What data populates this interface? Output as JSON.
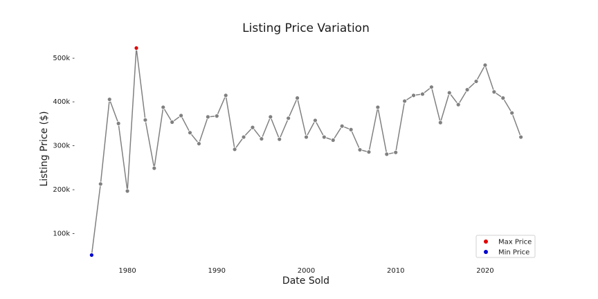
{
  "chart_data": {
    "type": "line",
    "title": "Listing Price Variation",
    "xlabel": "Date Sold",
    "ylabel": "Listing Price ($)",
    "xlim": [
      1974.5,
      2025.5
    ],
    "ylim": [
      35000,
      540000
    ],
    "x_ticks": [
      1980,
      1990,
      2000,
      2010,
      2020
    ],
    "y_ticks": [
      {
        "value": 100000,
        "label": "100k -"
      },
      {
        "value": 200000,
        "label": "200k -"
      },
      {
        "value": 300000,
        "label": "300k -"
      },
      {
        "value": 400000,
        "label": "400k -"
      },
      {
        "value": 500000,
        "label": "500k -"
      }
    ],
    "grid": false,
    "line_color": "#808080",
    "series": [
      {
        "x": [
          1976,
          1977,
          1978,
          1979,
          1980,
          1981,
          1982,
          1983,
          1984,
          1985,
          1986,
          1987,
          1988,
          1989,
          1990,
          1991,
          1992,
          1993,
          1994,
          1995,
          1996,
          1997,
          1998,
          1999,
          2000,
          2001,
          2002,
          2003,
          2004,
          2005,
          2006,
          2007,
          2008,
          2009,
          2010,
          2011,
          2012,
          2013,
          2014,
          2015,
          2016,
          2017,
          2018,
          2019,
          2020,
          2021,
          2022,
          2023,
          2024
        ],
        "values": [
          50000,
          212000,
          405000,
          350000,
          196000,
          522000,
          358000,
          248000,
          387000,
          353000,
          368000,
          329000,
          304000,
          365000,
          367000,
          414000,
          291000,
          319000,
          341000,
          315000,
          365000,
          314000,
          362000,
          408000,
          319000,
          357000,
          319000,
          312000,
          344000,
          336000,
          290000,
          285000,
          387000,
          280000,
          284000,
          401000,
          414000,
          417000,
          433000,
          352000,
          420000,
          393000,
          427000,
          446000,
          483000,
          422000,
          408000,
          374000,
          319000
        ]
      }
    ],
    "highlights": [
      {
        "name": "Max Price",
        "x": 1981,
        "value": 522000,
        "color": "#e00000"
      },
      {
        "name": "Min Price",
        "x": 1976,
        "value": 50000,
        "color": "#0000d0"
      }
    ],
    "legend": {
      "placement": "bottom-right",
      "entries": [
        {
          "label": "Max Price",
          "color": "#e00000"
        },
        {
          "label": "Min Price",
          "color": "#0000d0"
        }
      ]
    }
  }
}
